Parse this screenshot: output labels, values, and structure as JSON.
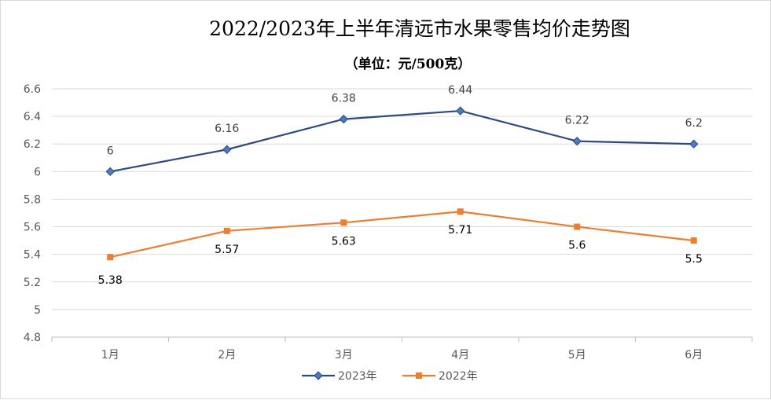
{
  "chart_data": {
    "type": "line",
    "title": "2022/2023年上半年清远市水果零售均价走势图",
    "subtitle": "（单位：元/500克）",
    "categories": [
      "1月",
      "2月",
      "3月",
      "4月",
      "5月",
      "6月"
    ],
    "ylim": [
      4.8,
      6.6
    ],
    "yticks": [
      "4.8",
      "5",
      "5.2",
      "5.4",
      "5.6",
      "5.8",
      "6",
      "6.2",
      "6.4",
      "6.6"
    ],
    "grid": true,
    "legend_position": "bottom",
    "series": [
      {
        "name": "2023年",
        "color": "#2f4b7c",
        "marker": "diamond",
        "values": [
          6,
          6.16,
          6.38,
          6.44,
          6.22,
          6.2
        ],
        "labels": [
          "6",
          "6.16",
          "6.38",
          "6.44",
          "6.22",
          "6.2"
        ]
      },
      {
        "name": "2022年",
        "color": "#ed7d31",
        "marker": "square",
        "values": [
          5.38,
          5.57,
          5.63,
          5.71,
          5.6,
          5.5
        ],
        "labels": [
          "5.38",
          "5.57",
          "5.63",
          "5.71",
          "5.6",
          "5.5"
        ]
      }
    ]
  }
}
